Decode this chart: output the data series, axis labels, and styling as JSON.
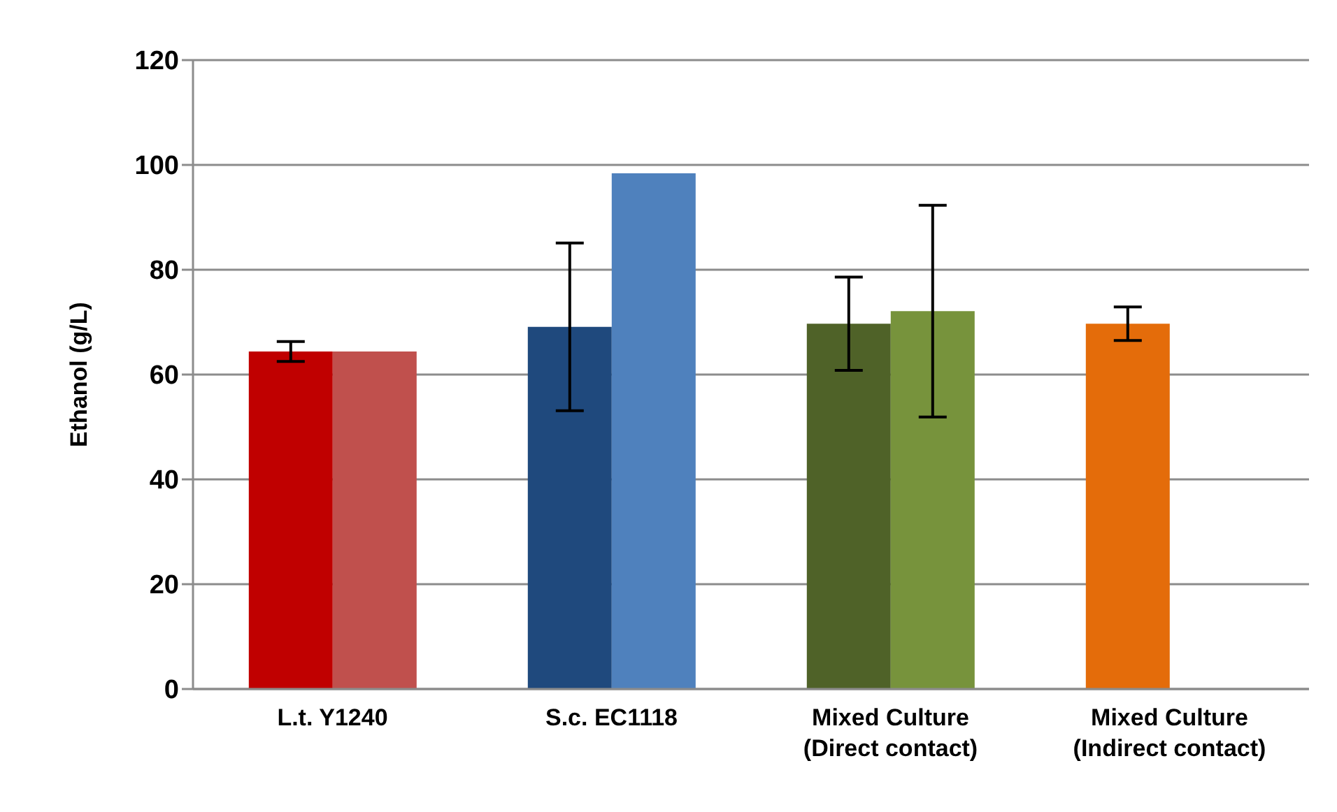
{
  "chart_data": {
    "type": "bar",
    "ylabel": "Ethanol (g/L)",
    "categories": [
      "L.t. Y1240",
      "S.c. EC1118",
      "Mixed Culture\n(Direct contact)",
      "Mixed Culture\n(Indirect contact)"
    ],
    "series": [
      {
        "colors": [
          "#c00000",
          "#1f497d",
          "#4f6228",
          "#e46c0a"
        ],
        "values": [
          64.4,
          69.1,
          69.7,
          69.7
        ],
        "errors": [
          1.9,
          16,
          8.9,
          3.2
        ]
      },
      {
        "colors": [
          "#c0504d",
          "#4f81bd",
          "#77933c",
          null
        ],
        "values": [
          64.4,
          98.4,
          72.1,
          null
        ],
        "errors": [
          null,
          null,
          20.2,
          null
        ]
      }
    ],
    "ylim": [
      0,
      120
    ],
    "yticks": [
      0,
      20,
      40,
      60,
      80,
      100,
      120
    ],
    "grid": "y"
  }
}
